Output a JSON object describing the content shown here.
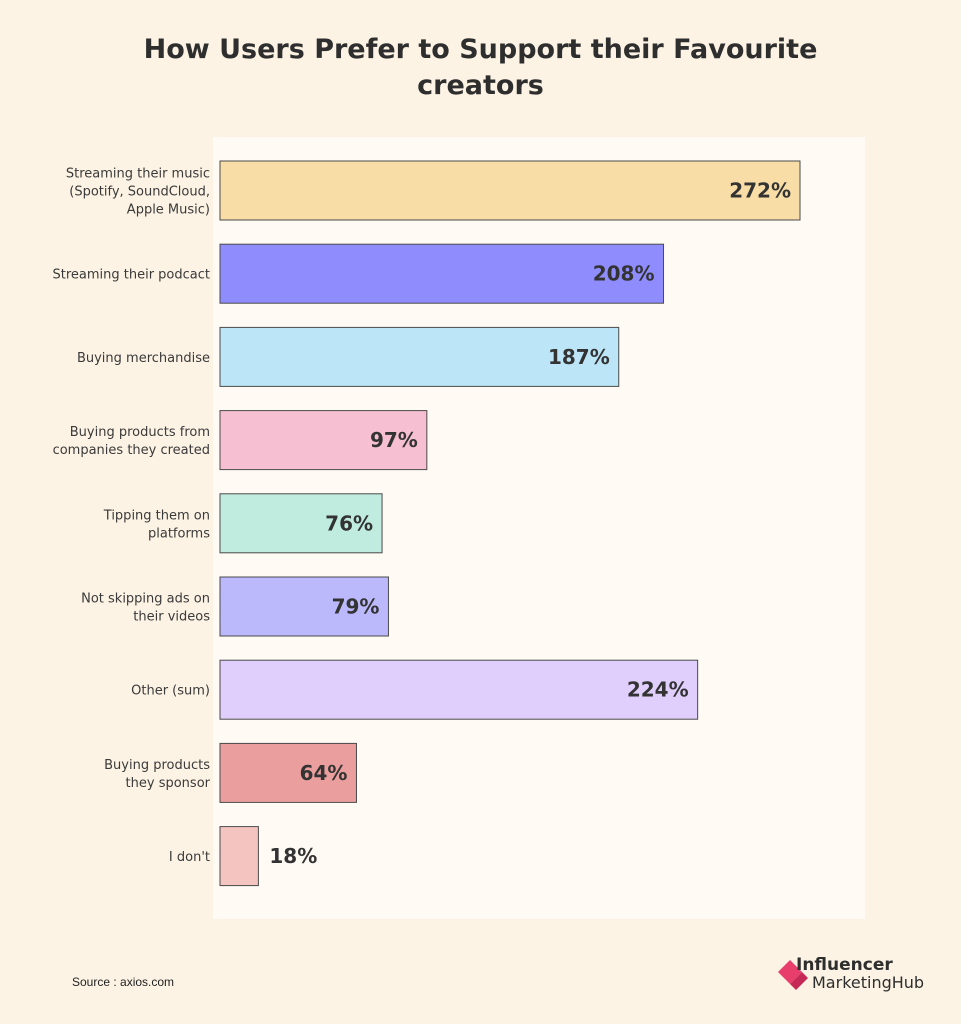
{
  "chart_data": {
    "type": "bar",
    "orientation": "horizontal",
    "title_line1": "How Users Prefer to Support their Favourite",
    "title_line2": "creators",
    "xlim": [
      0,
      300
    ],
    "grid": false,
    "categories": [
      [
        "Streaming their music",
        "(Spotify, SoundCloud,",
        "Apple Music)"
      ],
      [
        "Streaming their podcact"
      ],
      [
        "Buying merchandise"
      ],
      [
        "Buying products from",
        "companies they created"
      ],
      [
        "Tipping them on",
        "platforms"
      ],
      [
        "Not skipping ads on",
        "their videos"
      ],
      [
        "Other (sum)"
      ],
      [
        "Buying products",
        "they sponsor"
      ],
      [
        "I don't"
      ]
    ],
    "values": [
      272,
      208,
      187,
      97,
      76,
      79,
      224,
      64,
      18
    ],
    "value_labels": [
      "272%",
      "208%",
      "187%",
      "97%",
      "76%",
      "79%",
      "224%",
      "64%",
      "18%"
    ],
    "colors": [
      "#f8dda7",
      "#8f8cfd",
      "#bce6f8",
      "#f6bfd2",
      "#c0ecdf",
      "#bbb8fc",
      "#e0cffd",
      "#eb9e9e",
      "#f4c4c1"
    ]
  },
  "source": "Source : axios.com",
  "brand": {
    "line1": "Influencer",
    "line2": "MarketingHub",
    "colors": [
      "#e83e6c",
      "#c42a55"
    ]
  }
}
